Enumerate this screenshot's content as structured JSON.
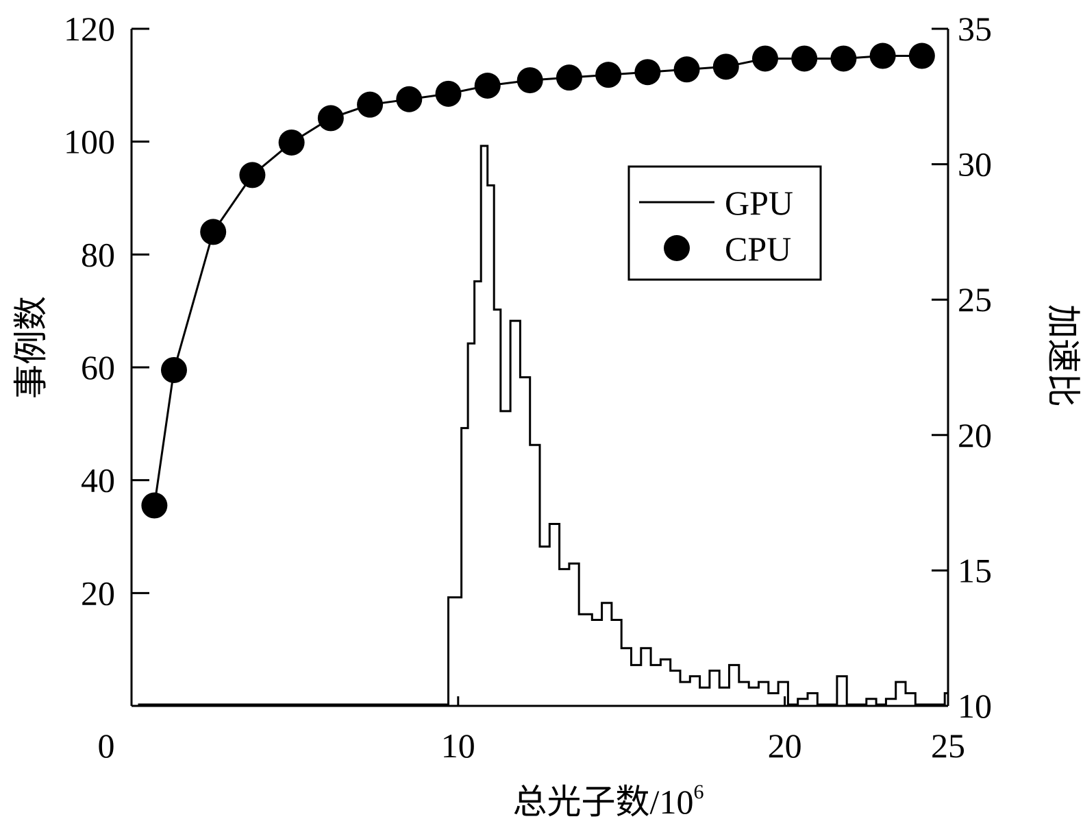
{
  "chart_data": {
    "type": "line",
    "x_axis": {
      "label_main": "总光子数/10",
      "label_sup": "6",
      "range": [
        0,
        25
      ],
      "ticks": [
        0,
        10,
        20,
        25
      ]
    },
    "left_axis": {
      "label": "事例数",
      "range": [
        0,
        120
      ],
      "ticks": [
        20,
        40,
        60,
        80,
        100,
        120
      ]
    },
    "right_axis": {
      "label": "加速比",
      "range": [
        10,
        35
      ],
      "ticks": [
        10,
        15,
        20,
        25,
        30,
        35
      ]
    },
    "legend": {
      "position": "upper-right",
      "items": [
        {
          "label": "GPU",
          "marker": "line"
        },
        {
          "label": "CPU",
          "marker": "circle"
        }
      ]
    },
    "series": [
      {
        "name": "GPU",
        "type": "step",
        "axis": "left",
        "color": "#000000",
        "x": [
          0.2,
          9.7,
          10.1,
          10.3,
          10.5,
          10.7,
          10.9,
          11.1,
          11.3,
          11.6,
          11.9,
          12.2,
          12.5,
          12.8,
          13.1,
          13.4,
          13.7,
          14.1,
          14.4,
          14.7,
          15.0,
          15.3,
          15.6,
          15.9,
          16.2,
          16.5,
          16.8,
          17.1,
          17.4,
          17.7,
          18.0,
          18.3,
          18.6,
          18.9,
          19.2,
          19.5,
          19.8,
          20.1,
          20.4,
          20.7,
          21.0,
          21.3,
          21.6,
          21.9,
          22.2,
          22.5,
          22.8,
          23.1,
          23.4,
          23.7,
          24.0,
          24.3,
          24.6,
          24.9
        ],
        "values": [
          0,
          19,
          49,
          64,
          75,
          99,
          92,
          70,
          52,
          68,
          58,
          46,
          28,
          32,
          24,
          25,
          16,
          15,
          18,
          15,
          10,
          7,
          10,
          7,
          8,
          6,
          4,
          5,
          3,
          6,
          3,
          7,
          4,
          3,
          4,
          2,
          4,
          0,
          1,
          2,
          0,
          0,
          5,
          0,
          0,
          1,
          0,
          1,
          4,
          2,
          0,
          0,
          0,
          2
        ],
        "step_end": 25
      },
      {
        "name": "CPU",
        "type": "line+marker",
        "axis": "right",
        "color": "#000000",
        "x": [
          0.7,
          1.3,
          2.5,
          3.7,
          4.9,
          6.1,
          7.3,
          8.5,
          9.7,
          10.9,
          12.2,
          13.4,
          14.6,
          15.8,
          17.0,
          18.2,
          19.4,
          20.6,
          21.8,
          23.0,
          24.2
        ],
        "values": [
          17.4,
          22.4,
          27.5,
          29.6,
          30.8,
          31.7,
          32.2,
          32.4,
          32.6,
          32.9,
          33.1,
          33.2,
          33.3,
          33.4,
          33.5,
          33.6,
          33.9,
          33.9,
          33.9,
          34.0,
          34.0
        ]
      }
    ]
  }
}
